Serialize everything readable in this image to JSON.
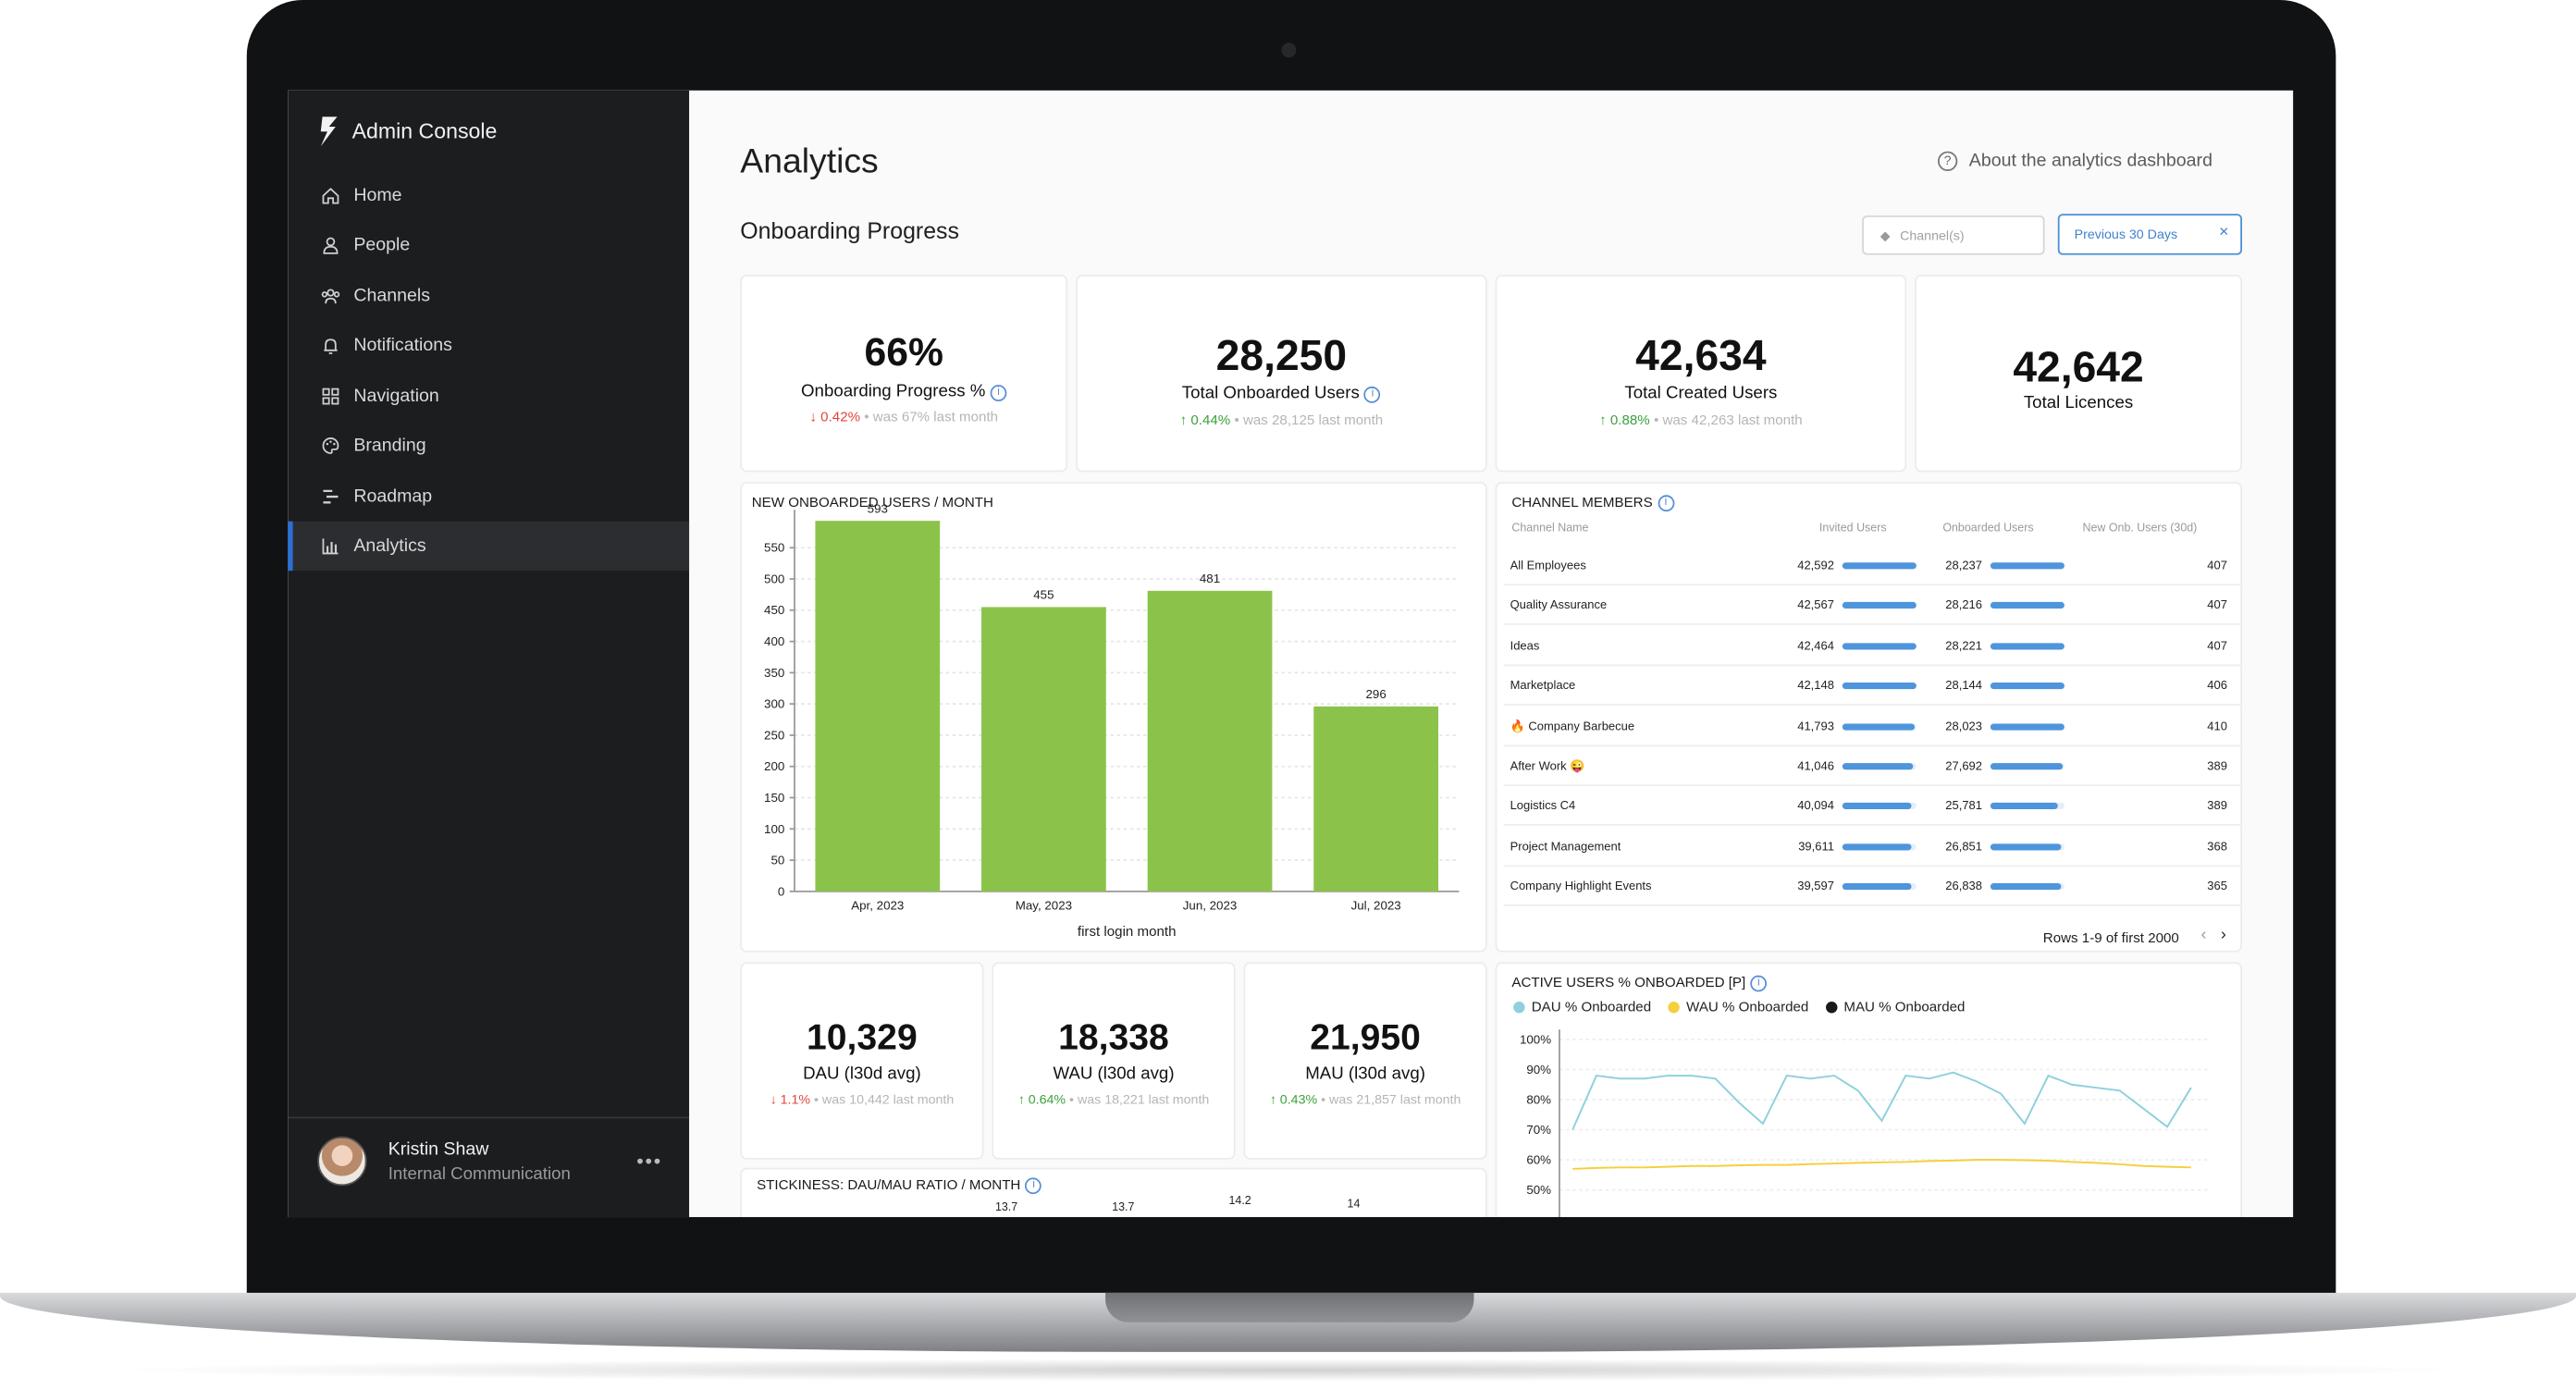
{
  "app": {
    "title": "Admin Console"
  },
  "sidebar": {
    "items": [
      {
        "label": "Home",
        "icon": "home-icon"
      },
      {
        "label": "People",
        "icon": "person-icon"
      },
      {
        "label": "Channels",
        "icon": "channels-icon"
      },
      {
        "label": "Notifications",
        "icon": "bell-icon"
      },
      {
        "label": "Navigation",
        "icon": "grid-icon"
      },
      {
        "label": "Branding",
        "icon": "palette-icon"
      },
      {
        "label": "Roadmap",
        "icon": "roadmap-icon"
      },
      {
        "label": "Analytics",
        "icon": "bar-chart-icon",
        "active": true
      }
    ],
    "user": {
      "name": "Kristin Shaw",
      "role": "Internal Communication",
      "menu": "•••"
    }
  },
  "header": {
    "title": "Analytics",
    "about": "About the analytics dashboard",
    "about_icon": "?"
  },
  "section": {
    "title": "Onboarding Progress",
    "channel_placeholder": "Channel(s)",
    "date_filter": "Previous 30 Days",
    "date_close": "×"
  },
  "kpis": [
    {
      "value": "66%",
      "label": "Onboarding Progress %",
      "arrow": "↓",
      "delta": "0.42%",
      "note": "• was 67% last month",
      "dir": "down"
    },
    {
      "value": "28,250",
      "label": "Total Onboarded Users",
      "arrow": "↑",
      "delta": "0.44%",
      "note": "• was 28,125 last month",
      "dir": "up"
    },
    {
      "value": "42,634",
      "label": "Total Created Users",
      "arrow": "↑",
      "delta": "0.88%",
      "note": "• was 42,263 last month",
      "dir": "up"
    },
    {
      "value": "42,642",
      "label": "Total Licences"
    }
  ],
  "kpis2": [
    {
      "value": "10,329",
      "label": "DAU (l30d avg)",
      "arrow": "↓",
      "delta": "1.1%",
      "note": "• was 10,442 last month",
      "dir": "down"
    },
    {
      "value": "18,338",
      "label": "WAU (l30d avg)",
      "arrow": "↑",
      "delta": "0.64%",
      "note": "• was 18,221 last month",
      "dir": "up"
    },
    {
      "value": "21,950",
      "label": "MAU (l30d avg)",
      "arrow": "↑",
      "delta": "0.43%",
      "note": "• was 21,857 last month",
      "dir": "up"
    }
  ],
  "chart_data": [
    {
      "type": "bar",
      "title": "NEW ONBOARDED USERS / MONTH",
      "xlabel": "first login month",
      "ylabel": "",
      "categories": [
        "Apr, 2023",
        "May, 2023",
        "Jun, 2023",
        "Jul, 2023"
      ],
      "values": [
        593,
        455,
        481,
        296
      ],
      "yticks": [
        0,
        50,
        100,
        150,
        200,
        250,
        300,
        350,
        400,
        450,
        500,
        550
      ],
      "ylim": [
        0,
        600
      ],
      "color": "#8bc34a",
      "grid": true
    },
    {
      "type": "line",
      "title": "ACTIVE USERS % ONBOARDED [P]",
      "series": [
        {
          "name": "DAU % Onboarded",
          "color": "#8fd0dc",
          "values": [
            70,
            88,
            87,
            87,
            88,
            88,
            87,
            79,
            72,
            88,
            87,
            88,
            83,
            73,
            88,
            87,
            89,
            86,
            82,
            72,
            88,
            85,
            84,
            83,
            77,
            71,
            84
          ]
        },
        {
          "name": "WAU % Onboarded",
          "color": "#f6cf3d",
          "values": [
            57,
            57.3,
            57.5,
            57.5,
            57.7,
            58,
            58,
            58.2,
            58.3,
            58.3,
            58.6,
            58.8,
            59,
            59.2,
            59.3,
            59.6,
            59.8,
            60,
            60,
            59.9,
            59.7,
            59.3,
            59,
            58.5,
            58,
            57.7,
            57.5
          ]
        },
        {
          "name": "MAU % Onboarded",
          "color": "#1a1a1a",
          "values": []
        }
      ],
      "yticks": [
        "100%",
        "90%",
        "80%",
        "70%",
        "60%",
        "50%"
      ],
      "ylim": [
        50,
        100
      ]
    },
    {
      "type": "line",
      "title": "STICKINESS: DAU/MAU RATIO / MONTH",
      "labels": [
        "13.7",
        "13.7",
        "14.2",
        "14"
      ]
    }
  ],
  "channels": {
    "title": "CHANNEL MEMBERS",
    "columns": [
      "Channel Name",
      "Invited Users",
      "Onboarded Users",
      "New Onb. Users (30d)"
    ],
    "rows": [
      {
        "name": "All Employees",
        "invited": "42,592",
        "onboarded": "28,237",
        "new": "407",
        "inv_pct": 1.0,
        "onb_pct": 1.0
      },
      {
        "name": "Quality Assurance",
        "invited": "42,567",
        "onboarded": "28,216",
        "new": "407",
        "inv_pct": 0.999,
        "onb_pct": 0.999
      },
      {
        "name": "Ideas",
        "invited": "42,464",
        "onboarded": "28,221",
        "new": "407",
        "inv_pct": 0.997,
        "onb_pct": 0.999
      },
      {
        "name": "Marketplace",
        "invited": "42,148",
        "onboarded": "28,144",
        "new": "406",
        "inv_pct": 0.99,
        "onb_pct": 0.997
      },
      {
        "name": "🔥 Company Barbecue",
        "invited": "41,793",
        "onboarded": "28,023",
        "new": "410",
        "inv_pct": 0.981,
        "onb_pct": 0.992
      },
      {
        "name": "After Work 😜",
        "invited": "41,046",
        "onboarded": "27,692",
        "new": "389",
        "inv_pct": 0.964,
        "onb_pct": 0.981
      },
      {
        "name": "Logistics C4",
        "invited": "40,094",
        "onboarded": "25,781",
        "new": "389",
        "inv_pct": 0.941,
        "onb_pct": 0.913
      },
      {
        "name": "Project Management",
        "invited": "39,611",
        "onboarded": "26,851",
        "new": "368",
        "inv_pct": 0.93,
        "onb_pct": 0.951
      },
      {
        "name": "Company Highlight Events",
        "invited": "39,597",
        "onboarded": "26,838",
        "new": "365",
        "inv_pct": 0.93,
        "onb_pct": 0.95
      }
    ],
    "pagination": "Rows 1-9 of first 2000",
    "prev": "‹",
    "next": "›"
  }
}
